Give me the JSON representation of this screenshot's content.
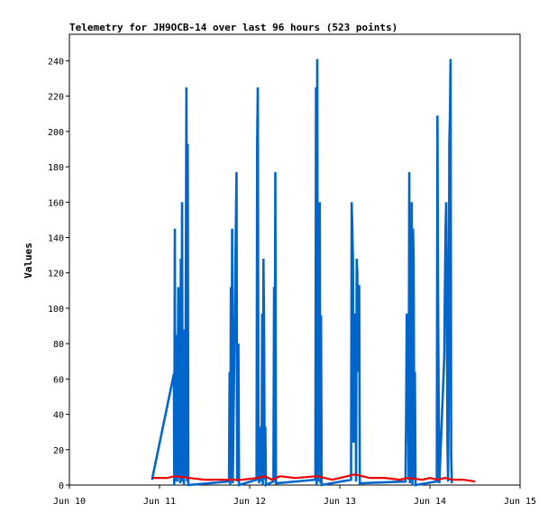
{
  "chart_data": {
    "type": "line",
    "title": "Telemetry for JH9OCB-14 over last 96 hours (523 points)",
    "xlabel": "",
    "ylabel": "Values",
    "xlim": [
      "2024-06-10T00:00",
      "2024-06-15T00:00"
    ],
    "ylim": [
      0,
      255
    ],
    "x_tick_labels": [
      "Jun 10",
      "Jun 11",
      "Jun 12",
      "Jun 13",
      "Jun 14",
      "Jun 15"
    ],
    "y_ticks": [
      0,
      20,
      40,
      60,
      80,
      100,
      120,
      140,
      160,
      180,
      200,
      220,
      240
    ],
    "grid": false,
    "series": [
      {
        "color": "#0066cc",
        "points": [
          [
            "2024-06-10T22:00",
            3
          ],
          [
            "2024-06-11T03:50",
            63
          ],
          [
            "2024-06-11T03:55",
            0
          ],
          [
            "2024-06-11T04:05",
            145
          ],
          [
            "2024-06-11T04:10",
            2
          ],
          [
            "2024-06-11T04:20",
            74
          ],
          [
            "2024-06-11T04:30",
            3
          ],
          [
            "2024-06-11T04:40",
            85
          ],
          [
            "2024-06-11T04:45",
            2
          ],
          [
            "2024-06-11T05:00",
            112
          ],
          [
            "2024-06-11T05:10",
            4
          ],
          [
            "2024-06-11T05:20",
            57
          ],
          [
            "2024-06-11T05:30",
            1
          ],
          [
            "2024-06-11T05:40",
            128
          ],
          [
            "2024-06-11T05:50",
            3
          ],
          [
            "2024-06-11T06:00",
            160
          ],
          [
            "2024-06-11T06:10",
            2
          ],
          [
            "2024-06-11T06:20",
            80
          ],
          [
            "2024-06-11T06:30",
            0
          ],
          [
            "2024-06-11T06:40",
            88
          ],
          [
            "2024-06-11T06:50",
            4
          ],
          [
            "2024-06-11T07:10",
            225
          ],
          [
            "2024-06-11T07:20",
            2
          ],
          [
            "2024-06-11T07:30",
            193
          ],
          [
            "2024-06-11T07:40",
            0
          ],
          [
            "2024-06-11T18:30",
            2
          ],
          [
            "2024-06-11T18:40",
            64
          ],
          [
            "2024-06-11T18:50",
            0
          ],
          [
            "2024-06-11T19:00",
            112
          ],
          [
            "2024-06-11T19:10",
            3
          ],
          [
            "2024-06-11T19:20",
            145
          ],
          [
            "2024-06-11T19:30",
            1
          ],
          [
            "2024-06-11T20:30",
            177
          ],
          [
            "2024-06-11T20:40",
            2
          ],
          [
            "2024-06-11T21:00",
            80
          ],
          [
            "2024-06-11T21:10",
            0
          ],
          [
            "2024-06-12T01:50",
            3
          ],
          [
            "2024-06-12T02:00",
            193
          ],
          [
            "2024-06-12T02:10",
            225
          ],
          [
            "2024-06-12T02:20",
            33
          ],
          [
            "2024-06-12T02:30",
            1
          ],
          [
            "2024-06-12T03:00",
            33
          ],
          [
            "2024-06-12T03:10",
            2
          ],
          [
            "2024-06-12T03:20",
            97
          ],
          [
            "2024-06-12T03:30",
            0
          ],
          [
            "2024-06-12T03:40",
            128
          ],
          [
            "2024-06-12T03:50",
            92
          ],
          [
            "2024-06-12T04:00",
            3
          ],
          [
            "2024-06-12T04:10",
            33
          ],
          [
            "2024-06-12T04:20",
            0
          ],
          [
            "2024-06-12T06:20",
            2
          ],
          [
            "2024-06-12T06:30",
            112
          ],
          [
            "2024-06-12T06:40",
            4
          ],
          [
            "2024-06-12T06:50",
            177
          ],
          [
            "2024-06-12T07:00",
            1
          ],
          [
            "2024-06-12T17:30",
            3
          ],
          [
            "2024-06-12T17:40",
            225
          ],
          [
            "2024-06-12T17:50",
            0
          ],
          [
            "2024-06-12T18:00",
            241
          ],
          [
            "2024-06-12T18:10",
            2
          ],
          [
            "2024-06-12T18:40",
            160
          ],
          [
            "2024-06-12T18:50",
            1
          ],
          [
            "2024-06-12T19:00",
            96
          ],
          [
            "2024-06-12T19:10",
            0
          ],
          [
            "2024-06-13T03:00",
            3
          ],
          [
            "2024-06-13T03:10",
            160
          ],
          [
            "2024-06-13T03:20",
            145
          ],
          [
            "2024-06-13T03:30",
            128
          ],
          [
            "2024-06-13T03:40",
            24
          ],
          [
            "2024-06-13T03:50",
            72
          ],
          [
            "2024-06-13T04:00",
            64
          ],
          [
            "2024-06-13T04:10",
            97
          ],
          [
            "2024-06-13T04:20",
            2
          ],
          [
            "2024-06-13T04:30",
            128
          ],
          [
            "2024-06-13T04:40",
            120
          ],
          [
            "2024-06-13T04:50",
            64
          ],
          [
            "2024-06-13T05:00",
            112
          ],
          [
            "2024-06-13T05:10",
            113
          ],
          [
            "2024-06-13T05:20",
            1
          ],
          [
            "2024-06-13T17:30",
            2
          ],
          [
            "2024-06-13T17:40",
            40
          ],
          [
            "2024-06-13T17:50",
            97
          ],
          [
            "2024-06-13T18:00",
            80
          ],
          [
            "2024-06-13T18:10",
            64
          ],
          [
            "2024-06-13T18:20",
            3
          ],
          [
            "2024-06-13T18:30",
            177
          ],
          [
            "2024-06-13T18:40",
            1
          ],
          [
            "2024-06-13T18:50",
            65
          ],
          [
            "2024-06-13T19:00",
            2
          ],
          [
            "2024-06-13T19:10",
            160
          ],
          [
            "2024-06-13T19:20",
            0
          ],
          [
            "2024-06-13T19:30",
            145
          ],
          [
            "2024-06-13T19:40",
            128
          ],
          [
            "2024-06-13T19:50",
            3
          ],
          [
            "2024-06-13T20:00",
            64
          ],
          [
            "2024-06-13T20:10",
            0
          ],
          [
            "2024-06-14T01:50",
            2
          ],
          [
            "2024-06-14T02:00",
            209
          ],
          [
            "2024-06-14T02:10",
            105
          ],
          [
            "2024-06-14T02:20",
            48
          ],
          [
            "2024-06-14T02:30",
            1
          ],
          [
            "2024-06-14T03:50",
            73
          ],
          [
            "2024-06-14T04:00",
            113
          ],
          [
            "2024-06-14T04:10",
            145
          ],
          [
            "2024-06-14T04:20",
            160
          ],
          [
            "2024-06-14T04:30",
            120
          ],
          [
            "2024-06-14T04:40",
            24
          ],
          [
            "2024-06-14T04:50",
            2
          ],
          [
            "2024-06-14T05:00",
            48
          ],
          [
            "2024-06-14T05:10",
            193
          ],
          [
            "2024-06-14T05:20",
            209
          ],
          [
            "2024-06-14T05:30",
            241
          ],
          [
            "2024-06-14T05:40",
            16
          ],
          [
            "2024-06-14T05:50",
            1
          ]
        ]
      },
      {
        "color": "#ee0000",
        "points": [
          [
            "2024-06-10T22:00",
            4
          ],
          [
            "2024-06-11T02:00",
            4
          ],
          [
            "2024-06-11T04:00",
            5
          ],
          [
            "2024-06-11T08:00",
            4
          ],
          [
            "2024-06-11T12:00",
            3
          ],
          [
            "2024-06-11T18:00",
            3
          ],
          [
            "2024-06-11T22:00",
            3
          ],
          [
            "2024-06-12T02:00",
            4
          ],
          [
            "2024-06-12T04:00",
            5
          ],
          [
            "2024-06-12T06:00",
            3
          ],
          [
            "2024-06-12T08:00",
            5
          ],
          [
            "2024-06-12T12:00",
            4
          ],
          [
            "2024-06-12T18:00",
            5
          ],
          [
            "2024-06-12T20:00",
            4
          ],
          [
            "2024-06-12T22:00",
            3
          ],
          [
            "2024-06-13T00:00",
            4
          ],
          [
            "2024-06-13T02:00",
            5
          ],
          [
            "2024-06-13T04:00",
            6
          ],
          [
            "2024-06-13T06:00",
            5
          ],
          [
            "2024-06-13T08:00",
            4
          ],
          [
            "2024-06-13T12:00",
            4
          ],
          [
            "2024-06-13T16:00",
            3
          ],
          [
            "2024-06-13T18:00",
            4
          ],
          [
            "2024-06-13T22:00",
            3
          ],
          [
            "2024-06-14T00:00",
            4
          ],
          [
            "2024-06-14T02:00",
            3
          ],
          [
            "2024-06-14T04:00",
            4
          ],
          [
            "2024-06-14T06:00",
            3
          ],
          [
            "2024-06-14T09:00",
            3
          ],
          [
            "2024-06-14T12:00",
            2
          ]
        ]
      }
    ]
  }
}
